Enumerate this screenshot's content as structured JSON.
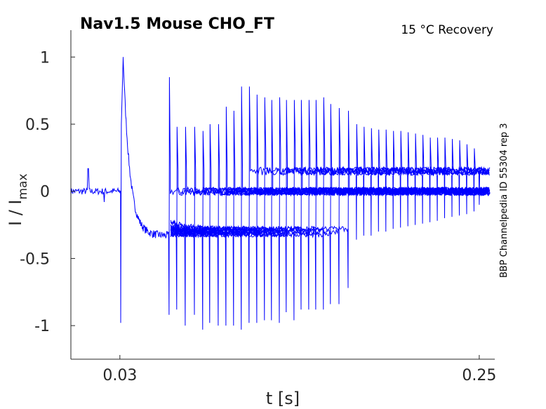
{
  "chart_data": {
    "type": "line",
    "title": "Nav1.5  Mouse  CHO_FT",
    "subtitle": "15 °C  Recovery",
    "side_label": "BBP Channelpedia ID 55304 rep 3",
    "xlabel": "t [s]",
    "ylabel": "I / I",
    "ylabel_sub": "max",
    "xlim": [
      0,
      0.2595
    ],
    "ylim": [
      -1.25,
      1.2
    ],
    "xticks": [
      {
        "v": 0.03,
        "label": "0.03"
      },
      {
        "v": 0.25,
        "label": "0.25"
      }
    ],
    "yticks": [
      {
        "v": 1,
        "label": "1"
      },
      {
        "v": 0.5,
        "label": "0.5"
      },
      {
        "v": 0,
        "label": "0"
      },
      {
        "v": -0.5,
        "label": "-0.5"
      },
      {
        "v": -1,
        "label": "-1"
      }
    ],
    "line_color": "#0000ff",
    "conditioning_pulse": {
      "start": 0.0305,
      "peak": 1.0,
      "trough": -0.98,
      "steady": -0.33,
      "end": 0.0601
    },
    "test_spikes": [
      {
        "t": 0.0601,
        "peak": 0.85,
        "trough": -0.92
      },
      {
        "t": 0.0648,
        "peak": 0.48,
        "trough": -0.88
      },
      {
        "t": 0.07,
        "peak": 0.48,
        "trough": -1.0
      },
      {
        "t": 0.0756,
        "peak": 0.48,
        "trough": -0.92
      },
      {
        "t": 0.0807,
        "peak": 0.45,
        "trough": -1.03
      },
      {
        "t": 0.085,
        "peak": 0.5,
        "trough": -0.98
      },
      {
        "t": 0.0902,
        "peak": 0.5,
        "trough": -1.0
      },
      {
        "t": 0.0949,
        "peak": 0.63,
        "trough": -1.0
      },
      {
        "t": 0.0996,
        "peak": 0.6,
        "trough": -1.0
      },
      {
        "t": 0.1043,
        "peak": 0.78,
        "trough": -1.03
      },
      {
        "t": 0.1091,
        "peak": 0.78,
        "trough": -0.98
      },
      {
        "t": 0.1138,
        "peak": 0.72,
        "trough": -0.98
      },
      {
        "t": 0.1185,
        "peak": 0.7,
        "trough": -0.96
      },
      {
        "t": 0.1228,
        "peak": 0.68,
        "trough": -0.96
      },
      {
        "t": 0.1276,
        "peak": 0.7,
        "trough": -0.98
      },
      {
        "t": 0.1318,
        "peak": 0.68,
        "trough": -0.9
      },
      {
        "t": 0.1366,
        "peak": 0.68,
        "trough": -0.96
      },
      {
        "t": 0.1409,
        "peak": 0.68,
        "trough": -0.88
      },
      {
        "t": 0.1456,
        "peak": 0.68,
        "trough": -0.88
      },
      {
        "t": 0.1499,
        "peak": 0.68,
        "trough": -0.88
      },
      {
        "t": 0.1546,
        "peak": 0.7,
        "trough": -0.88
      },
      {
        "t": 0.1589,
        "peak": 0.65,
        "trough": -0.84
      },
      {
        "t": 0.1641,
        "peak": 0.62,
        "trough": -0.84
      },
      {
        "t": 0.1697,
        "peak": 0.6,
        "trough": -0.72
      }
    ],
    "late_spikes": [
      {
        "t": 0.1748,
        "peak": 0.5,
        "trough": -0.36
      },
      {
        "t": 0.1793,
        "peak": 0.48,
        "trough": -0.33
      },
      {
        "t": 0.1838,
        "peak": 0.47,
        "trough": -0.33
      },
      {
        "t": 0.1883,
        "peak": 0.46,
        "trough": -0.3
      },
      {
        "t": 0.1928,
        "peak": 0.46,
        "trough": -0.3
      },
      {
        "t": 0.1973,
        "peak": 0.45,
        "trough": -0.28
      },
      {
        "t": 0.2018,
        "peak": 0.45,
        "trough": -0.27
      },
      {
        "t": 0.2063,
        "peak": 0.44,
        "trough": -0.26
      },
      {
        "t": 0.2108,
        "peak": 0.43,
        "trough": -0.25
      },
      {
        "t": 0.2153,
        "peak": 0.42,
        "trough": -0.24
      },
      {
        "t": 0.2198,
        "peak": 0.4,
        "trough": -0.23
      },
      {
        "t": 0.2243,
        "peak": 0.4,
        "trough": -0.22
      },
      {
        "t": 0.2288,
        "peak": 0.4,
        "trough": -0.2
      },
      {
        "t": 0.2333,
        "peak": 0.39,
        "trough": -0.19
      },
      {
        "t": 0.2378,
        "peak": 0.38,
        "trough": -0.18
      },
      {
        "t": 0.2423,
        "peak": 0.35,
        "trough": -0.17
      },
      {
        "t": 0.2468,
        "peak": 0.32,
        "trough": -0.15
      },
      {
        "t": 0.25,
        "peak": 0.12,
        "trough": -0.1
      }
    ]
  }
}
